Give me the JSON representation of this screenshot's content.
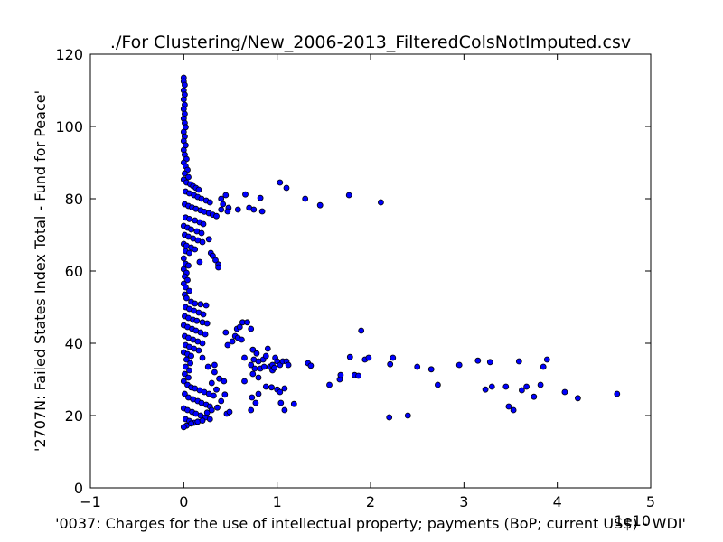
{
  "chart_data": {
    "type": "scatter",
    "title": "./For Clustering/New_2006-2013_FilteredColsNotImputed.csv",
    "xlabel": "'0037: Charges for the use of intellectual property; payments  (BoP; current US$) - WDI'",
    "ylabel": "'2707N: Failed States Index Total - Fund for Peace'",
    "x_offset_label": "1e10",
    "xlim": [
      -1,
      5
    ],
    "ylim": [
      0,
      120
    ],
    "x_ticks": [
      -1,
      0,
      1,
      2,
      3,
      4,
      5
    ],
    "y_ticks": [
      0,
      20,
      40,
      60,
      80,
      100,
      120
    ],
    "x_tick_labels": [
      "−1",
      "0",
      "1",
      "2",
      "3",
      "4",
      "5"
    ],
    "y_tick_labels": [
      "0",
      "20",
      "40",
      "60",
      "80",
      "100",
      "120"
    ],
    "marker_color": "#0000ff",
    "grid": false,
    "legend": "none",
    "points": [
      [
        0.0,
        113.5
      ],
      [
        0.0,
        112.5
      ],
      [
        0.01,
        111.5
      ],
      [
        0.0,
        110.0
      ],
      [
        0.01,
        108.8
      ],
      [
        0.0,
        107.5
      ],
      [
        0.01,
        106.0
      ],
      [
        0.0,
        104.8
      ],
      [
        0.01,
        103.5
      ],
      [
        0.0,
        102.2
      ],
      [
        0.01,
        101.0
      ],
      [
        0.02,
        99.8
      ],
      [
        0.0,
        98.5
      ],
      [
        0.01,
        97.2
      ],
      [
        0.0,
        96.0
      ],
      [
        0.02,
        94.8
      ],
      [
        0.0,
        93.5
      ],
      [
        0.01,
        92.2
      ],
      [
        0.03,
        91.0
      ],
      [
        0.0,
        90.0
      ],
      [
        0.02,
        89.0
      ],
      [
        0.04,
        88.0
      ],
      [
        0.01,
        87.0
      ],
      [
        0.05,
        86.0
      ],
      [
        0.0,
        85.3
      ],
      [
        0.03,
        84.5
      ],
      [
        0.07,
        84.0
      ],
      [
        0.1,
        83.5
      ],
      [
        0.13,
        83.0
      ],
      [
        0.16,
        82.5
      ],
      [
        0.02,
        82.0
      ],
      [
        0.06,
        81.5
      ],
      [
        0.11,
        81.0
      ],
      [
        0.15,
        80.5
      ],
      [
        0.19,
        80.0
      ],
      [
        0.24,
        79.5
      ],
      [
        0.28,
        79.0
      ],
      [
        0.01,
        78.5
      ],
      [
        0.05,
        78.0
      ],
      [
        0.09,
        77.6
      ],
      [
        0.13,
        77.2
      ],
      [
        0.18,
        76.8
      ],
      [
        0.22,
        76.4
      ],
      [
        0.27,
        76.0
      ],
      [
        0.31,
        75.6
      ],
      [
        0.35,
        75.2
      ],
      [
        0.02,
        74.8
      ],
      [
        0.06,
        74.4
      ],
      [
        0.12,
        74.0
      ],
      [
        0.17,
        73.5
      ],
      [
        0.21,
        73.0
      ],
      [
        0.0,
        72.5
      ],
      [
        0.04,
        72.0
      ],
      [
        0.08,
        71.5
      ],
      [
        0.14,
        71.0
      ],
      [
        0.19,
        70.5
      ],
      [
        0.01,
        70.0
      ],
      [
        0.05,
        69.5
      ],
      [
        0.1,
        69.0
      ],
      [
        0.15,
        68.5
      ],
      [
        0.2,
        68.0
      ],
      [
        0.27,
        68.8
      ],
      [
        0.0,
        67.5
      ],
      [
        0.03,
        67.0
      ],
      [
        0.08,
        66.5
      ],
      [
        0.12,
        66.0
      ],
      [
        0.02,
        65.5
      ],
      [
        0.06,
        65.0
      ],
      [
        0.29,
        65.0
      ],
      [
        0.31,
        64.2
      ],
      [
        0.34,
        63.0
      ],
      [
        0.37,
        61.8
      ],
      [
        0.37,
        61.0
      ],
      [
        0.0,
        63.5
      ],
      [
        0.17,
        62.5
      ],
      [
        0.02,
        62.0
      ],
      [
        0.05,
        61.5
      ],
      [
        0.0,
        60.5
      ],
      [
        0.03,
        59.5
      ],
      [
        0.01,
        58.5
      ],
      [
        0.04,
        57.5
      ],
      [
        0.0,
        56.5
      ],
      [
        0.02,
        55.5
      ],
      [
        0.06,
        54.5
      ],
      [
        0.01,
        53.5
      ],
      [
        0.03,
        52.5
      ],
      [
        0.08,
        51.5
      ],
      [
        0.12,
        51.0
      ],
      [
        0.18,
        50.8
      ],
      [
        0.24,
        50.5
      ],
      [
        0.02,
        50.0
      ],
      [
        0.06,
        49.5
      ],
      [
        0.11,
        49.0
      ],
      [
        0.16,
        48.5
      ],
      [
        0.21,
        48.0
      ],
      [
        0.01,
        47.5
      ],
      [
        0.05,
        47.0
      ],
      [
        0.1,
        46.5
      ],
      [
        0.14,
        46.2
      ],
      [
        0.2,
        45.8
      ],
      [
        0.25,
        45.5
      ],
      [
        0.0,
        45.0
      ],
      [
        0.04,
        44.5
      ],
      [
        0.09,
        44.0
      ],
      [
        0.13,
        43.5
      ],
      [
        0.18,
        43.0
      ],
      [
        0.23,
        42.5
      ],
      [
        0.01,
        42.0
      ],
      [
        0.05,
        41.5
      ],
      [
        0.1,
        41.0
      ],
      [
        0.15,
        40.5
      ],
      [
        0.2,
        40.0
      ],
      [
        0.02,
        39.5
      ],
      [
        0.06,
        39.0
      ],
      [
        0.11,
        38.5
      ],
      [
        0.16,
        38.0
      ],
      [
        0.0,
        37.5
      ],
      [
        0.04,
        37.0
      ],
      [
        0.08,
        36.5
      ],
      [
        0.03,
        35.5
      ],
      [
        0.07,
        34.5
      ],
      [
        0.02,
        33.5
      ],
      [
        0.06,
        32.5
      ],
      [
        0.01,
        31.5
      ],
      [
        0.05,
        30.5
      ],
      [
        0.0,
        29.5
      ],
      [
        0.04,
        28.5
      ],
      [
        0.08,
        27.8
      ],
      [
        0.12,
        27.5
      ],
      [
        0.17,
        27.0
      ],
      [
        0.22,
        26.5
      ],
      [
        0.27,
        26.0
      ],
      [
        0.32,
        25.5
      ],
      [
        0.01,
        26.0
      ],
      [
        0.05,
        25.0
      ],
      [
        0.1,
        24.5
      ],
      [
        0.15,
        24.0
      ],
      [
        0.19,
        23.5
      ],
      [
        0.24,
        23.0
      ],
      [
        0.28,
        22.5
      ],
      [
        0.0,
        22.0
      ],
      [
        0.04,
        21.5
      ],
      [
        0.09,
        21.0
      ],
      [
        0.13,
        20.5
      ],
      [
        0.18,
        20.0
      ],
      [
        0.23,
        19.5
      ],
      [
        0.28,
        19.0
      ],
      [
        0.02,
        19.0
      ],
      [
        0.06,
        18.5
      ],
      [
        0.11,
        18.0
      ],
      [
        0.15,
        18.3
      ],
      [
        0.2,
        18.6
      ],
      [
        0.03,
        17.2
      ],
      [
        0.0,
        16.8
      ],
      [
        0.08,
        17.8
      ],
      [
        0.25,
        20.8
      ],
      [
        0.3,
        21.5
      ],
      [
        0.36,
        22.2
      ],
      [
        0.4,
        24.0
      ],
      [
        0.44,
        25.8
      ],
      [
        0.35,
        27.2
      ],
      [
        0.3,
        29.0
      ],
      [
        0.38,
        30.2
      ],
      [
        0.33,
        32.0
      ],
      [
        0.26,
        33.5
      ],
      [
        0.33,
        34.0
      ],
      [
        0.2,
        36.0
      ],
      [
        0.46,
        20.5
      ],
      [
        0.49,
        21.0
      ],
      [
        0.43,
        29.5
      ],
      [
        0.4,
        80.0
      ],
      [
        0.45,
        81.0
      ],
      [
        0.42,
        78.5
      ],
      [
        0.48,
        77.5
      ],
      [
        0.4,
        77.0
      ],
      [
        0.47,
        76.5
      ],
      [
        0.58,
        77.0
      ],
      [
        0.66,
        81.2
      ],
      [
        0.7,
        77.5
      ],
      [
        0.75,
        77.0
      ],
      [
        0.82,
        80.2
      ],
      [
        0.84,
        76.5
      ],
      [
        1.03,
        84.5
      ],
      [
        1.1,
        83.0
      ],
      [
        1.3,
        80.0
      ],
      [
        1.46,
        78.2
      ],
      [
        1.77,
        81.0
      ],
      [
        2.11,
        79.0
      ],
      [
        0.45,
        43.0
      ],
      [
        0.47,
        39.5
      ],
      [
        0.52,
        40.5
      ],
      [
        0.55,
        42.0
      ],
      [
        0.57,
        44.0
      ],
      [
        0.6,
        44.5
      ],
      [
        0.63,
        45.8
      ],
      [
        0.68,
        45.8
      ],
      [
        0.72,
        44.0
      ],
      [
        0.58,
        41.5
      ],
      [
        0.62,
        41.0
      ],
      [
        0.74,
        38.2
      ],
      [
        0.78,
        37.2
      ],
      [
        0.65,
        36.0
      ],
      [
        0.75,
        35.5
      ],
      [
        0.8,
        35.0
      ],
      [
        0.85,
        35.5
      ],
      [
        0.88,
        36.5
      ],
      [
        0.9,
        38.5
      ],
      [
        0.72,
        34.0
      ],
      [
        0.76,
        33.0
      ],
      [
        0.82,
        33.0
      ],
      [
        0.86,
        33.5
      ],
      [
        0.92,
        33.5
      ],
      [
        0.95,
        34.0
      ],
      [
        0.98,
        36.0
      ],
      [
        1.0,
        35.0
      ],
      [
        1.03,
        34.0
      ],
      [
        1.06,
        35.0
      ],
      [
        1.1,
        35.0
      ],
      [
        1.12,
        34.0
      ],
      [
        0.65,
        29.5
      ],
      [
        0.74,
        31.5
      ],
      [
        0.8,
        30.5
      ],
      [
        0.95,
        32.5
      ],
      [
        0.97,
        33.2
      ],
      [
        0.88,
        28.0
      ],
      [
        0.94,
        27.8
      ],
      [
        1.0,
        27.2
      ],
      [
        1.03,
        26.5
      ],
      [
        1.08,
        27.5
      ],
      [
        0.8,
        26.0
      ],
      [
        0.73,
        25.0
      ],
      [
        0.77,
        23.5
      ],
      [
        0.72,
        21.5
      ],
      [
        1.04,
        23.5
      ],
      [
        1.08,
        21.5
      ],
      [
        1.18,
        23.2
      ],
      [
        1.33,
        34.5
      ],
      [
        1.36,
        33.8
      ],
      [
        1.56,
        28.5
      ],
      [
        1.67,
        30.0
      ],
      [
        1.68,
        31.2
      ],
      [
        1.78,
        36.2
      ],
      [
        1.83,
        31.2
      ],
      [
        1.87,
        31.0
      ],
      [
        1.9,
        43.5
      ],
      [
        1.94,
        35.5
      ],
      [
        1.98,
        36.0
      ],
      [
        2.21,
        34.2
      ],
      [
        2.24,
        36.0
      ],
      [
        2.2,
        19.5
      ],
      [
        2.4,
        20.0
      ],
      [
        2.5,
        33.5
      ],
      [
        2.65,
        32.8
      ],
      [
        2.72,
        28.5
      ],
      [
        2.95,
        34.0
      ],
      [
        3.15,
        35.2
      ],
      [
        3.23,
        27.2
      ],
      [
        3.28,
        34.8
      ],
      [
        3.3,
        28.0
      ],
      [
        3.45,
        28.0
      ],
      [
        3.48,
        22.5
      ],
      [
        3.53,
        21.5
      ],
      [
        3.59,
        35.0
      ],
      [
        3.62,
        27.0
      ],
      [
        3.67,
        28.0
      ],
      [
        3.75,
        25.2
      ],
      [
        3.82,
        28.5
      ],
      [
        3.85,
        33.5
      ],
      [
        3.89,
        35.5
      ],
      [
        4.08,
        26.5
      ],
      [
        4.22,
        24.8
      ],
      [
        4.64,
        26.0
      ]
    ]
  }
}
